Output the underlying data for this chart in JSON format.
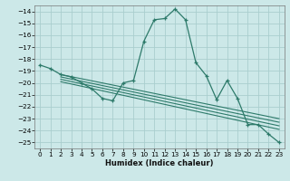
{
  "xlabel": "Humidex (Indice chaleur)",
  "background_color": "#cce8e8",
  "line_color": "#2d7a6a",
  "grid_color": "#aacece",
  "ylim": [
    -25.5,
    -13.5
  ],
  "xlim": [
    -0.5,
    23.5
  ],
  "yticks": [
    -25,
    -24,
    -23,
    -22,
    -21,
    -20,
    -19,
    -18,
    -17,
    -16,
    -15,
    -14
  ],
  "xticks": [
    0,
    1,
    2,
    3,
    4,
    5,
    6,
    7,
    8,
    9,
    10,
    11,
    12,
    13,
    14,
    15,
    16,
    17,
    18,
    19,
    20,
    21,
    22,
    23
  ],
  "main_x": [
    0,
    1,
    2,
    3,
    4,
    5,
    6,
    7,
    8,
    9,
    10,
    11,
    12,
    13,
    14,
    15,
    16,
    17,
    18,
    19,
    20,
    21,
    22,
    23
  ],
  "main_y": [
    -18.5,
    -18.8,
    -19.3,
    -19.5,
    -20.0,
    -20.5,
    -21.3,
    -21.5,
    -20.0,
    -19.8,
    -16.5,
    -14.7,
    -14.6,
    -13.8,
    -14.7,
    -18.3,
    -19.4,
    -21.4,
    -19.8,
    -21.3,
    -23.5,
    -23.5,
    -24.3,
    -25.0
  ],
  "trend_lines": [
    {
      "x": [
        2,
        23
      ],
      "y": [
        -19.3,
        -23.0
      ]
    },
    {
      "x": [
        2,
        23
      ],
      "y": [
        -19.5,
        -23.3
      ]
    },
    {
      "x": [
        2,
        23
      ],
      "y": [
        -19.7,
        -23.6
      ]
    },
    {
      "x": [
        2,
        23
      ],
      "y": [
        -19.9,
        -23.9
      ]
    }
  ]
}
